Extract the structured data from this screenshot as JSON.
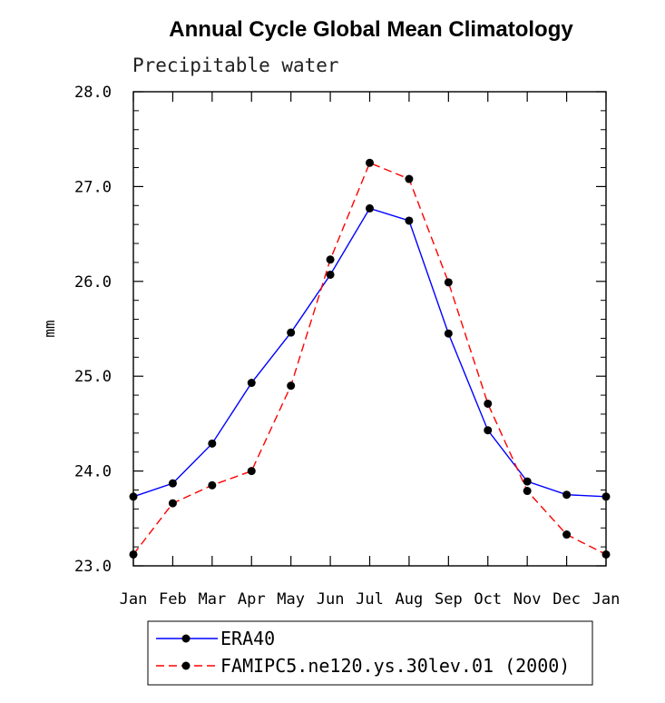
{
  "chart_data": {
    "type": "line",
    "title": "Annual Cycle Global Mean Climatology",
    "subtitle": "Precipitable water",
    "xlabel": "",
    "ylabel": "mm",
    "categories": [
      "Jan",
      "Feb",
      "Mar",
      "Apr",
      "May",
      "Jun",
      "Jul",
      "Aug",
      "Sep",
      "Oct",
      "Nov",
      "Dec",
      "Jan"
    ],
    "ylim": [
      23.0,
      28.0
    ],
    "yticks": [
      "23.0",
      "24.0",
      "25.0",
      "26.0",
      "27.0",
      "28.0"
    ],
    "grid": false,
    "legend_position": "bottom",
    "series": [
      {
        "name": "ERA40",
        "color": "#0000ff",
        "dash": "solid",
        "marker": "filled-circle",
        "values": [
          23.73,
          23.87,
          24.29,
          24.93,
          25.46,
          26.07,
          26.77,
          26.64,
          25.45,
          24.43,
          23.89,
          23.75,
          23.73
        ]
      },
      {
        "name": "FAMIPC5.ne120.ys.30lev.01 (2000)",
        "color": "#ff0000",
        "dash": "dashed",
        "marker": "filled-circle",
        "values": [
          23.12,
          23.66,
          23.85,
          24.0,
          24.9,
          26.23,
          27.25,
          27.08,
          25.99,
          24.71,
          23.79,
          23.33,
          23.12
        ]
      }
    ]
  }
}
